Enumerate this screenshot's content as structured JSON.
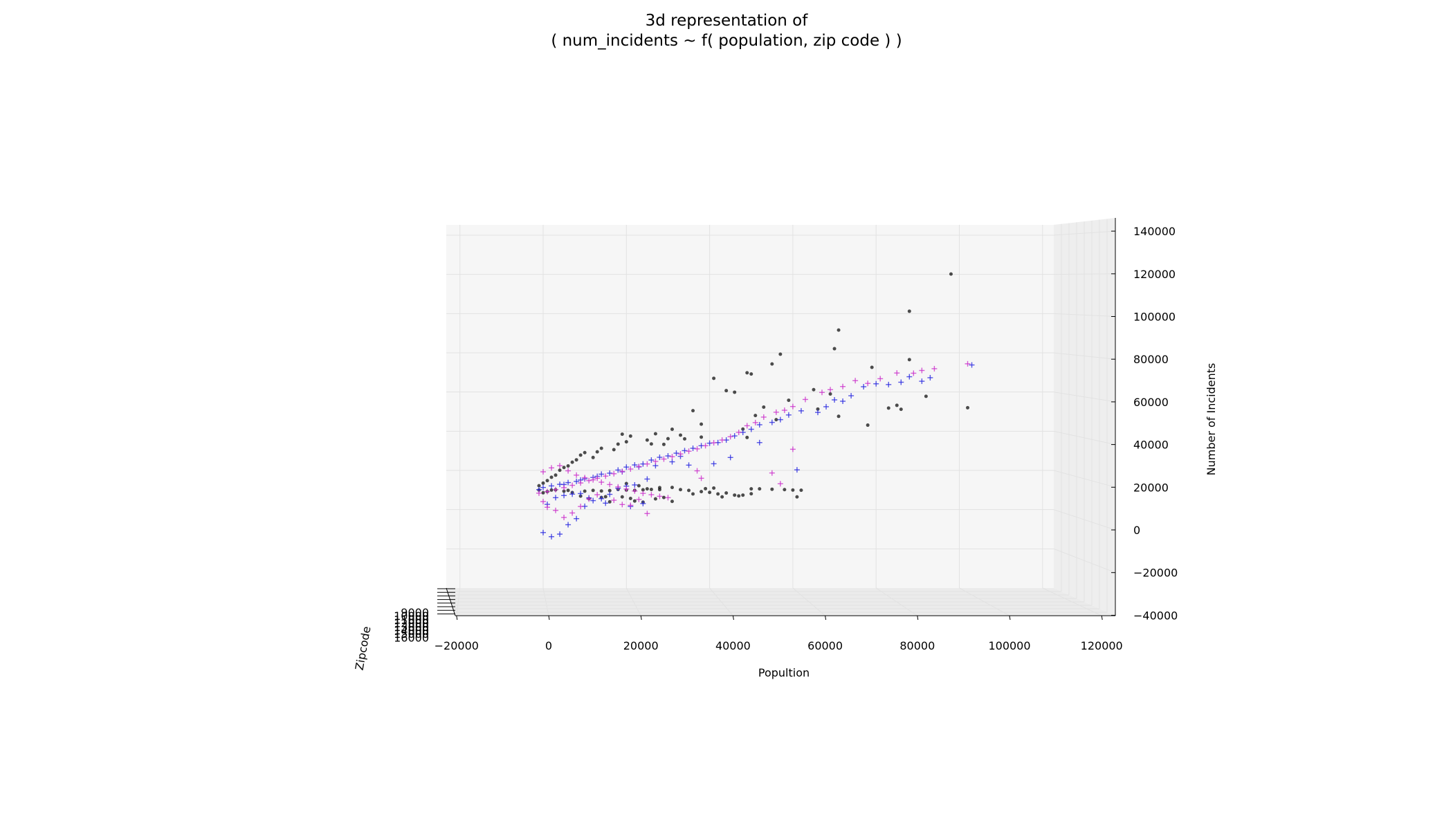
{
  "chart_data": {
    "type": "scatter",
    "projection": "3d",
    "title_line1": "3d representation of",
    "title_line2": "( num_incidents ~ f( population, zip code ) )",
    "xlabel": "Popultion",
    "ylabel": "Zipcode",
    "zlabel": "Number of Incidents",
    "xlim": [
      -22000,
      122000
    ],
    "zlim": [
      -40000,
      142000
    ],
    "x_ticks": [
      "−20000",
      "0",
      "20000",
      "40000",
      "60000",
      "80000",
      "100000",
      "120000"
    ],
    "x_tick_values": [
      -20000,
      0,
      20000,
      40000,
      60000,
      80000,
      100000,
      120000
    ],
    "z_ticks": [
      "−40000",
      "−20000",
      "0",
      "20000",
      "40000",
      "60000",
      "80000",
      "100000",
      "120000",
      "140000"
    ],
    "z_tick_values": [
      -40000,
      -20000,
      0,
      20000,
      40000,
      60000,
      80000,
      100000,
      120000,
      140000
    ],
    "y_ticks": [
      "9000",
      "10000",
      "11000",
      "12000",
      "13000",
      "14000",
      "15000",
      "16000"
    ],
    "grid": true,
    "colors": {
      "actual": "#111111",
      "model_a": "#2a2ae0",
      "model_b": "#cc33cc",
      "pane": "#f2f2f2",
      "grid": "#e2e2e2"
    },
    "series": [
      {
        "marker": "dot",
        "color": "#111111",
        "points": [
          [
            98,
            120200
          ],
          [
            88,
            101200
          ],
          [
            71,
            91600
          ],
          [
            70,
            82100
          ],
          [
            57,
            79300
          ],
          [
            55,
            74300
          ],
          [
            49,
            69800
          ],
          [
            50,
            69200
          ],
          [
            79,
            72600
          ],
          [
            88,
            76500
          ],
          [
            92,
            57800
          ],
          [
            102,
            52000
          ],
          [
            78,
            43100
          ],
          [
            71,
            47600
          ],
          [
            69,
            59000
          ],
          [
            83,
            51800
          ],
          [
            85,
            53200
          ],
          [
            86,
            51200
          ],
          [
            65,
            61200
          ],
          [
            66,
            51300
          ],
          [
            41,
            67000
          ],
          [
            44,
            60700
          ],
          [
            46,
            59900
          ],
          [
            36,
            50500
          ],
          [
            51,
            48000
          ],
          [
            53,
            52300
          ],
          [
            56,
            45900
          ],
          [
            59,
            55800
          ],
          [
            48,
            41100
          ],
          [
            49,
            36800
          ],
          [
            38,
            43600
          ],
          [
            38,
            37000
          ],
          [
            33,
            38000
          ],
          [
            34,
            36100
          ],
          [
            31,
            41000
          ],
          [
            30,
            36200
          ],
          [
            29,
            33300
          ],
          [
            27,
            38700
          ],
          [
            25,
            35500
          ],
          [
            26,
            33500
          ],
          [
            21,
            37500
          ],
          [
            19,
            38500
          ],
          [
            20,
            34600
          ],
          [
            18,
            33400
          ],
          [
            17,
            30600
          ],
          [
            14,
            31300
          ],
          [
            13,
            29500
          ],
          [
            12,
            26600
          ],
          [
            10,
            29100
          ],
          [
            9,
            27800
          ],
          [
            8,
            25400
          ],
          [
            7,
            24200
          ],
          [
            6,
            22300
          ],
          [
            5,
            21500
          ],
          [
            4,
            20100
          ],
          [
            3,
            17600
          ],
          [
            2,
            16500
          ],
          [
            1,
            14800
          ],
          [
            0,
            13500
          ],
          [
            -1,
            12200
          ],
          [
            20,
            13300
          ],
          [
            23,
            12200
          ],
          [
            25,
            10600
          ],
          [
            28,
            11200
          ],
          [
            31,
            11300
          ],
          [
            33,
            10200
          ],
          [
            35,
            9800
          ],
          [
            38,
            9200
          ],
          [
            39,
            10700
          ],
          [
            41,
            11000
          ],
          [
            50,
            10600
          ],
          [
            52,
            10600
          ],
          [
            55,
            10400
          ],
          [
            58,
            10200
          ],
          [
            60,
            10000
          ],
          [
            62,
            9900
          ],
          [
            27,
            5500
          ],
          [
            29,
            6200
          ],
          [
            21,
            5700
          ],
          [
            22,
            4400
          ],
          [
            19,
            6500
          ],
          [
            24,
            3800
          ],
          [
            31,
            4200
          ],
          [
            16,
            4000
          ],
          [
            15,
            6600
          ],
          [
            14,
            6200
          ],
          [
            11,
            5600
          ],
          [
            9,
            6900
          ],
          [
            7,
            8700
          ],
          [
            6,
            9800
          ],
          [
            5,
            9400
          ],
          [
            3,
            10100
          ],
          [
            2,
            10000
          ],
          [
            1,
            9200
          ],
          [
            0,
            8600
          ],
          [
            -1,
            10000
          ],
          [
            10,
            9400
          ],
          [
            12,
            9800
          ],
          [
            14,
            9500
          ],
          [
            16,
            9700
          ],
          [
            18,
            10300
          ],
          [
            20,
            10000
          ],
          [
            22,
            9800
          ],
          [
            24,
            10100
          ],
          [
            26,
            10300
          ],
          [
            28,
            10200
          ],
          [
            48,
            7400
          ],
          [
            50,
            8100
          ],
          [
            61,
            6500
          ],
          [
            36,
            8000
          ],
          [
            42,
            8000
          ],
          [
            44,
            8500
          ],
          [
            46,
            7400
          ],
          [
            47,
            7000
          ],
          [
            40,
            8800
          ],
          [
            43,
            6500
          ]
        ]
      },
      {
        "marker": "plus",
        "color": "#2a2ae0",
        "points": [
          [
            103,
            73800
          ],
          [
            93,
            67300
          ],
          [
            91,
            65500
          ],
          [
            88,
            67800
          ],
          [
            86,
            65000
          ],
          [
            83,
            63800
          ],
          [
            80,
            64200
          ],
          [
            77,
            62700
          ],
          [
            74,
            58100
          ],
          [
            72,
            55300
          ],
          [
            70,
            56000
          ],
          [
            68,
            52500
          ],
          [
            66,
            49600
          ],
          [
            62,
            50400
          ],
          [
            59,
            48300
          ],
          [
            57,
            45900
          ],
          [
            55,
            44500
          ],
          [
            52,
            43300
          ],
          [
            50,
            41000
          ],
          [
            48,
            39400
          ],
          [
            46,
            37600
          ],
          [
            44,
            35500
          ],
          [
            42,
            34200
          ],
          [
            40,
            33900
          ],
          [
            38,
            32600
          ],
          [
            36,
            31300
          ],
          [
            34,
            30100
          ],
          [
            32,
            28800
          ],
          [
            30,
            27400
          ],
          [
            28,
            26700
          ],
          [
            26,
            25300
          ],
          [
            24,
            23300
          ],
          [
            22,
            22800
          ],
          [
            20,
            21700
          ],
          [
            18,
            20200
          ],
          [
            16,
            18600
          ],
          [
            14,
            18100
          ],
          [
            12,
            16400
          ],
          [
            10,
            15700
          ],
          [
            8,
            14400
          ],
          [
            6,
            13800
          ],
          [
            4,
            12900
          ],
          [
            2,
            12100
          ],
          [
            0,
            11300
          ],
          [
            -1,
            10200
          ],
          [
            31,
            24400
          ],
          [
            33,
            27200
          ],
          [
            27,
            22400
          ],
          [
            23,
            21800
          ],
          [
            19,
            19300
          ],
          [
            13,
            17000
          ],
          [
            9,
            15100
          ],
          [
            5,
            12800
          ],
          [
            61,
            20300
          ],
          [
            52,
            34200
          ],
          [
            45,
            26600
          ],
          [
            41,
            23400
          ],
          [
            35,
            22700
          ],
          [
            25,
            15600
          ],
          [
            22,
            12600
          ],
          [
            20,
            12000
          ],
          [
            18,
            10900
          ],
          [
            16,
            7800
          ],
          [
            14,
            5600
          ],
          [
            12,
            4600
          ],
          [
            10,
            1700
          ],
          [
            8,
            -4600
          ],
          [
            6,
            -7700
          ],
          [
            4,
            -12500
          ],
          [
            2,
            -13800
          ],
          [
            0,
            -11700
          ],
          [
            24,
            3100
          ],
          [
            21,
            1600
          ],
          [
            11,
            6000
          ],
          [
            15,
            3300
          ],
          [
            1,
            2700
          ],
          [
            3,
            6100
          ],
          [
            5,
            7200
          ],
          [
            7,
            7900
          ],
          [
            9,
            8200
          ]
        ]
      },
      {
        "marker": "plus",
        "color": "#cc33cc",
        "points": [
          [
            102,
            74400
          ],
          [
            94,
            71900
          ],
          [
            91,
            71000
          ],
          [
            89,
            69600
          ],
          [
            85,
            69700
          ],
          [
            81,
            66800
          ],
          [
            78,
            64400
          ],
          [
            75,
            65800
          ],
          [
            72,
            62800
          ],
          [
            69,
            61200
          ],
          [
            67,
            59800
          ],
          [
            63,
            56200
          ],
          [
            60,
            52600
          ],
          [
            58,
            50700
          ],
          [
            56,
            49700
          ],
          [
            53,
            47200
          ],
          [
            51,
            44400
          ],
          [
            49,
            42800
          ],
          [
            47,
            39400
          ],
          [
            45,
            37200
          ],
          [
            43,
            35500
          ],
          [
            41,
            34100
          ],
          [
            39,
            32600
          ],
          [
            37,
            31000
          ],
          [
            35,
            29800
          ],
          [
            33,
            28400
          ],
          [
            31,
            27000
          ],
          [
            29,
            25800
          ],
          [
            27,
            24600
          ],
          [
            25,
            23300
          ],
          [
            23,
            22000
          ],
          [
            21,
            20700
          ],
          [
            19,
            19500
          ],
          [
            17,
            18300
          ],
          [
            15,
            17100
          ],
          [
            13,
            16000
          ],
          [
            11,
            14800
          ],
          [
            9,
            13600
          ],
          [
            7,
            12400
          ],
          [
            5,
            11200
          ],
          [
            3,
            10200
          ],
          [
            1,
            9200
          ],
          [
            0,
            19300
          ],
          [
            2,
            21300
          ],
          [
            4,
            22400
          ],
          [
            6,
            19800
          ],
          [
            8,
            17600
          ],
          [
            10,
            16300
          ],
          [
            12,
            15200
          ],
          [
            14,
            14000
          ],
          [
            16,
            12800
          ],
          [
            18,
            11600
          ],
          [
            20,
            10500
          ],
          [
            22,
            9500
          ],
          [
            24,
            8300
          ],
          [
            26,
            7600
          ],
          [
            28,
            6800
          ],
          [
            30,
            6100
          ],
          [
            57,
            13200
          ],
          [
            55,
            18700
          ],
          [
            37,
            19800
          ],
          [
            38,
            16000
          ],
          [
            60,
            30800
          ],
          [
            25,
            -2000
          ],
          [
            23,
            5200
          ],
          [
            21,
            2200
          ],
          [
            17,
            4800
          ],
          [
            13,
            7600
          ],
          [
            11,
            5400
          ],
          [
            9,
            1600
          ],
          [
            7,
            -1700
          ],
          [
            5,
            -4000
          ],
          [
            3,
            -400
          ],
          [
            1,
            1200
          ],
          [
            0,
            4100
          ],
          [
            -1,
            8400
          ],
          [
            19,
            2600
          ]
        ]
      }
    ]
  }
}
